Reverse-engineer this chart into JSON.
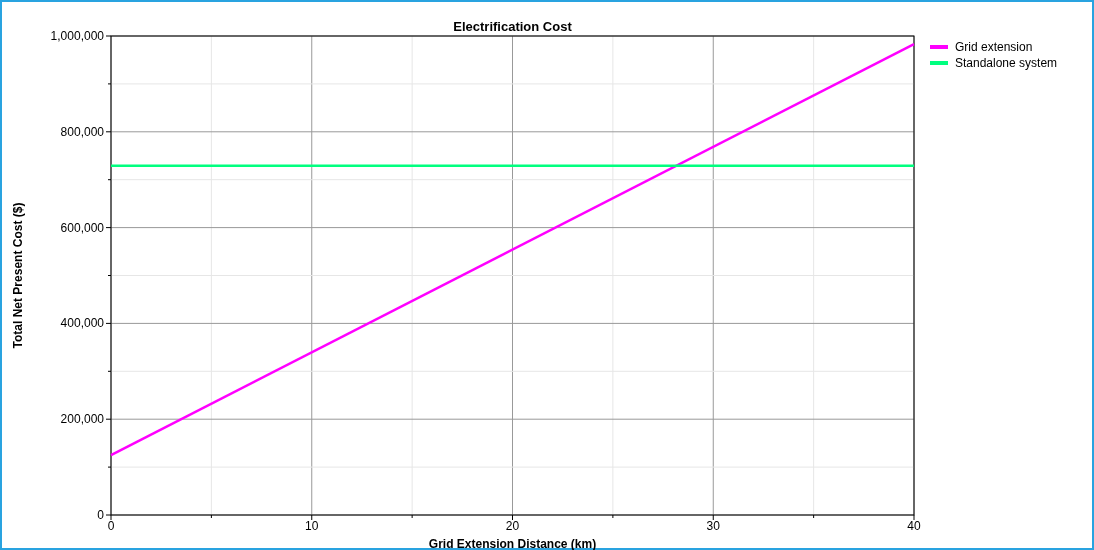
{
  "chart_data": {
    "type": "line",
    "title": "Electrification Cost",
    "xlabel": "Grid Extension Distance (km)",
    "ylabel": "Total Net Present Cost ($)",
    "series": [
      {
        "name": "Grid extension",
        "color": "#ff00ff",
        "values": [
          125000,
          983000
        ]
      },
      {
        "name": "Standalone system",
        "color": "#00ff7f",
        "values": [
          729000,
          729000
        ]
      }
    ],
    "x": [
      0,
      40
    ],
    "xlim": [
      0,
      40
    ],
    "ylim": [
      0,
      1000000
    ],
    "xticks": [
      0,
      {
        "value": 5,
        "label": null
      },
      10,
      {
        "value": 15,
        "label": null
      },
      20,
      {
        "value": 25,
        "label": null
      },
      30,
      {
        "value": 35,
        "label": null
      },
      40
    ],
    "yticks": [
      {
        "value": 0,
        "label": "0"
      },
      {
        "value": 100000,
        "label": null
      },
      {
        "value": 200000,
        "label": "200,000"
      },
      {
        "value": 300000,
        "label": null
      },
      {
        "value": 400000,
        "label": "400,000"
      },
      {
        "value": 500000,
        "label": null
      },
      {
        "value": 600000,
        "label": "600,000"
      },
      {
        "value": 700000,
        "label": null
      },
      {
        "value": 800000,
        "label": "800,000"
      },
      {
        "value": 900000,
        "label": null
      },
      {
        "value": 1000000,
        "label": "1,000,000"
      }
    ],
    "grid": true,
    "legend": "top right",
    "marker": "none",
    "line_style": "solid"
  }
}
